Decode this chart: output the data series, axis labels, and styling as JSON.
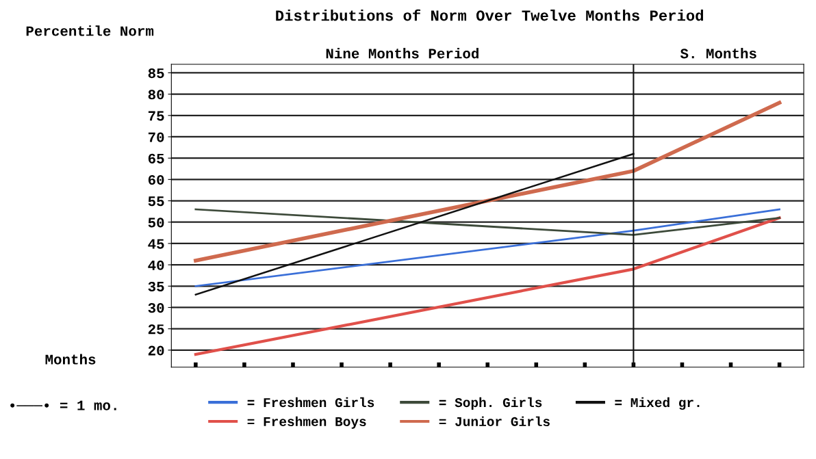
{
  "chart_data": {
    "type": "line",
    "title": "Distributions of Norm Over Twelve Months Period",
    "ylabel": "Percentile Norm",
    "xlabel": "Months",
    "categories": [
      null,
      null,
      null,
      null,
      null,
      null,
      null,
      null,
      null,
      null,
      null,
      null,
      null
    ],
    "series": [
      {
        "name": "= Freshmen Girls",
        "color": "#3a6fd8",
        "values": [
          35,
          null,
          null,
          null,
          null,
          null,
          null,
          null,
          null,
          48,
          null,
          null,
          53
        ]
      },
      {
        "name": "= Freshmen Boys",
        "color": "#e0504a",
        "values": [
          19,
          null,
          null,
          null,
          null,
          null,
          null,
          null,
          null,
          39,
          null,
          null,
          51
        ]
      },
      {
        "name": "= Soph. Girls",
        "color": "#3d4a3a",
        "values": [
          53,
          null,
          null,
          null,
          null,
          null,
          null,
          null,
          null,
          47,
          null,
          null,
          51
        ]
      },
      {
        "name": "= Junior Girls",
        "color": "#cf6a4e",
        "values": [
          41,
          null,
          null,
          null,
          null,
          null,
          null,
          null,
          null,
          62,
          null,
          null,
          78
        ]
      },
      {
        "name": "= Mixed gr.",
        "color": "#111111",
        "values": [
          33,
          null,
          null,
          null,
          null,
          null,
          null,
          null,
          null,
          66,
          null,
          null,
          null
        ]
      }
    ],
    "ylim": [
      16,
      87
    ],
    "yticks": [
      20,
      25,
      30,
      35,
      40,
      45,
      50,
      55,
      60,
      65,
      70,
      75,
      80,
      85
    ],
    "grid": "y",
    "annotations": [
      "Nine Months Period",
      "S. Months",
      "•───• = 1 mo."
    ],
    "legend": "bottom"
  }
}
